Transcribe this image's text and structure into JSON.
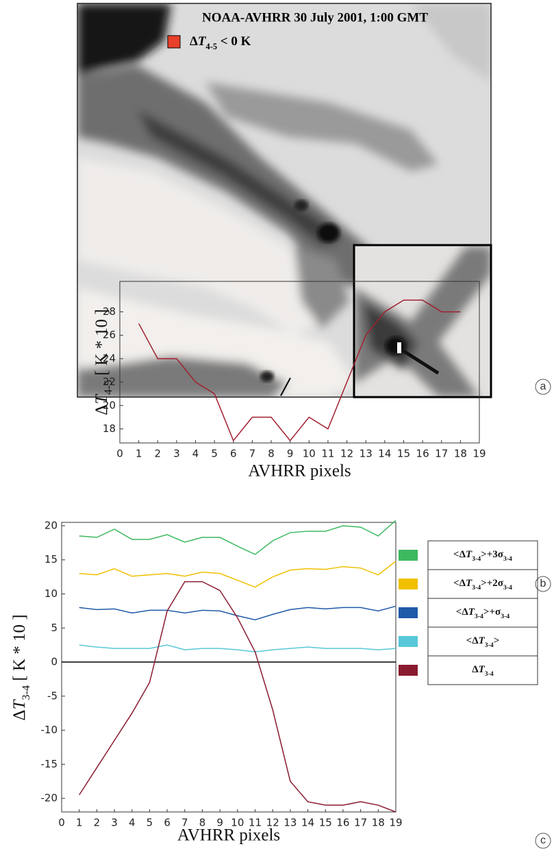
{
  "image_panel": {
    "title": "NOAA-AVHRR 30 July 2001, 1:00 GMT",
    "legend": {
      "color": "#e8402a",
      "label": [
        {
          "text": "Δ"
        },
        {
          "text": "T",
          "style": "italic"
        },
        {
          "text": "4-5",
          "style": "sub"
        },
        {
          "text": " < 0 K"
        }
      ]
    }
  },
  "panel_labels": [
    "a",
    "b",
    "c"
  ],
  "chart_data": [
    {
      "type": "line",
      "ylabel": [
        {
          "text": "Δ"
        },
        {
          "text": "T",
          "style": "italic"
        },
        {
          "text": "4-5",
          "style": "sub"
        },
        {
          "text": " [ K * 10 ]"
        }
      ],
      "xlabel": "AVHRR pixels",
      "x": [
        1,
        2,
        3,
        4,
        5,
        6,
        7,
        8,
        9,
        10,
        11,
        12,
        13,
        14,
        15,
        16,
        17,
        18
      ],
      "values": [
        27,
        24,
        24,
        22,
        21,
        17,
        19,
        19,
        17,
        19,
        18,
        22,
        26,
        28,
        29,
        29,
        28,
        28
      ],
      "color": "#a02030",
      "xlim": [
        0,
        19
      ],
      "xticks": [
        0,
        1,
        2,
        3,
        4,
        5,
        6,
        7,
        8,
        9,
        10,
        11,
        12,
        13,
        14,
        15,
        16,
        17,
        18,
        19
      ],
      "ylim": [
        16.8,
        30.6
      ],
      "yticks": [
        18,
        20,
        22,
        24,
        26,
        28
      ]
    },
    {
      "type": "line",
      "ylabel": [
        {
          "text": "Δ"
        },
        {
          "text": "T",
          "style": "italic"
        },
        {
          "text": "3-4",
          "style": "sub"
        },
        {
          "text": " [ K * 10 ]"
        }
      ],
      "xlabel": "AVHRR pixels",
      "x": [
        1,
        2,
        3,
        4,
        5,
        6,
        7,
        8,
        9,
        10,
        11,
        12,
        13,
        14,
        15,
        16,
        17,
        18,
        19
      ],
      "zero_line": true,
      "series": [
        {
          "name": [
            {
              "text": "<Δ"
            },
            {
              "text": "T",
              "style": "italic"
            },
            {
              "text": "3-4",
              "style": "sub"
            },
            {
              "text": ">+3σ"
            },
            {
              "text": "3-4",
              "style": "sub"
            }
          ],
          "color": "#3cb860",
          "values": [
            18.5,
            18.3,
            19.5,
            18,
            18,
            18.7,
            17.6,
            18.3,
            18.3,
            17,
            15.8,
            17.8,
            19,
            19.2,
            19.2,
            20,
            19.8,
            18.5,
            20.8
          ]
        },
        {
          "name": [
            {
              "text": "<Δ"
            },
            {
              "text": "T",
              "style": "italic"
            },
            {
              "text": "3-4",
              "style": "sub"
            },
            {
              "text": ">+2σ"
            },
            {
              "text": "3-4",
              "style": "sub"
            }
          ],
          "color": "#f0c000",
          "values": [
            13,
            12.8,
            13.7,
            12.6,
            12.8,
            13,
            12.6,
            13.2,
            13,
            12,
            11,
            12.5,
            13.5,
            13.7,
            13.6,
            14,
            13.8,
            12.8,
            14.8
          ]
        },
        {
          "name": [
            {
              "text": "<Δ"
            },
            {
              "text": "T",
              "style": "italic"
            },
            {
              "text": "3-4",
              "style": "sub"
            },
            {
              "text": ">+σ"
            },
            {
              "text": "3-4",
              "style": "sub"
            }
          ],
          "color": "#1f5aa8",
          "values": [
            8,
            7.7,
            7.8,
            7.2,
            7.6,
            7.6,
            7.2,
            7.6,
            7.5,
            6.8,
            6.2,
            7,
            7.7,
            8,
            7.8,
            8,
            8,
            7.5,
            8.2
          ]
        },
        {
          "name": [
            {
              "text": "<Δ"
            },
            {
              "text": "T",
              "style": "italic"
            },
            {
              "text": "3-4",
              "style": "sub"
            },
            {
              "text": ">"
            }
          ],
          "color": "#58c8d8",
          "values": [
            2.5,
            2.2,
            2,
            2,
            2,
            2.5,
            1.8,
            2,
            2,
            1.8,
            1.5,
            1.8,
            2,
            2.2,
            2,
            2,
            2,
            1.8,
            2
          ]
        },
        {
          "name": [
            {
              "text": "Δ"
            },
            {
              "text": "T",
              "style": "italic"
            },
            {
              "text": "3-4",
              "style": "sub"
            }
          ],
          "color": "#8a1a30",
          "values": [
            -19.5,
            -15.5,
            -11.5,
            -7.5,
            -3,
            7.5,
            11.8,
            11.8,
            10.5,
            6.5,
            1.5,
            -7,
            -17.5,
            -20.5,
            -21,
            -21,
            -20.5,
            -21,
            -22
          ]
        }
      ],
      "xlim": [
        0,
        19
      ],
      "xticks": [
        0,
        1,
        2,
        3,
        4,
        5,
        6,
        7,
        8,
        9,
        10,
        11,
        12,
        13,
        14,
        15,
        16,
        17,
        18,
        19
      ],
      "ylim": [
        -22,
        20.5
      ],
      "yticks": [
        -20,
        -15,
        -10,
        -5,
        0,
        5,
        10,
        15,
        20
      ]
    }
  ]
}
